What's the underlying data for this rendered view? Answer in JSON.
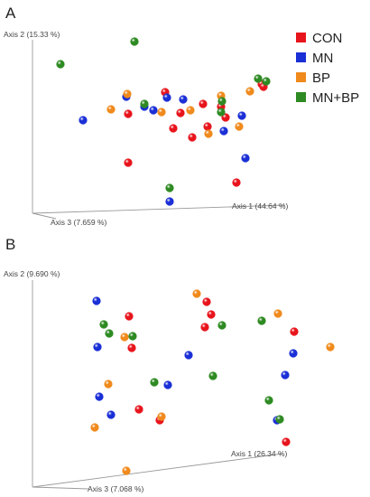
{
  "chart_data": [
    {
      "type": "scatter",
      "panel": "A",
      "axes": [
        {
          "label": "Axis 1 (44.64 %)"
        },
        {
          "label": "Axis 2 (15.33 %)"
        },
        {
          "label": "Axis 3 (7.659 %)"
        }
      ],
      "legend": {
        "placement": "top-right"
      },
      "series": [
        {
          "name": "CON",
          "color": "#e8141c",
          "points": [
            [
              183,
              102
            ],
            [
              225,
              115
            ],
            [
              142,
              126
            ],
            [
              192,
              142
            ],
            [
              213,
              152
            ],
            [
              250,
              130
            ],
            [
              290,
              93
            ],
            [
              292,
              96
            ],
            [
              142,
              180
            ],
            [
              262,
              202
            ],
            [
              245,
              118
            ],
            [
              200,
              125
            ],
            [
              230,
              140
            ]
          ]
        },
        {
          "name": "MN",
          "color": "#1a2fd6",
          "points": [
            [
              92,
              133
            ],
            [
              140,
              107
            ],
            [
              185,
              108
            ],
            [
              203,
              110
            ],
            [
              268,
              128
            ],
            [
              248,
              145
            ],
            [
              272,
              175
            ],
            [
              188,
              223
            ],
            [
              170,
              122
            ],
            [
              160,
              118
            ]
          ]
        },
        {
          "name": "BP",
          "color": "#f08a1c",
          "points": [
            [
              141,
              104
            ],
            [
              123,
              121
            ],
            [
              211,
              122
            ],
            [
              245,
              106
            ],
            [
              277,
              101
            ],
            [
              265,
              140
            ],
            [
              231,
              148
            ],
            [
              179,
              124
            ]
          ]
        },
        {
          "name": "MN+BP",
          "color": "#2e8a22",
          "points": [
            [
              149,
              46
            ],
            [
              67,
              71
            ],
            [
              160,
              115
            ],
            [
              246,
              112
            ],
            [
              286,
              87
            ],
            [
              295,
              90
            ],
            [
              245,
              124
            ],
            [
              188,
              208
            ]
          ]
        }
      ]
    },
    {
      "type": "scatter",
      "panel": "B",
      "axes": [
        {
          "label": "Axis 1 (26.34 %)"
        },
        {
          "label": "Axis 2 (9.690 %)"
        },
        {
          "label": "Axis 3 (7.068 %)"
        }
      ],
      "series": [
        {
          "name": "CON",
          "color": "#e8141c",
          "points": [
            [
              229,
              334
            ],
            [
              234,
              348
            ],
            [
              227,
              362
            ],
            [
              143,
              350
            ],
            [
              146,
              385
            ],
            [
              154,
              453
            ],
            [
              177,
              465
            ],
            [
              326,
              367
            ],
            [
              317,
              489
            ]
          ]
        },
        {
          "name": "MN",
          "color": "#1a2fd6",
          "points": [
            [
              107,
              333
            ],
            [
              108,
              384
            ],
            [
              209,
              393
            ],
            [
              186,
              426
            ],
            [
              110,
              439
            ],
            [
              123,
              459
            ],
            [
              325,
              391
            ],
            [
              316,
              415
            ],
            [
              307,
              465
            ]
          ]
        },
        {
          "name": "BP",
          "color": "#f08a1c",
          "points": [
            [
              218,
              325
            ],
            [
              308,
              347
            ],
            [
              366,
              384
            ],
            [
              138,
              373
            ],
            [
              120,
              425
            ],
            [
              179,
              461
            ],
            [
              105,
              473
            ],
            [
              140,
              521
            ]
          ]
        },
        {
          "name": "MN+BP",
          "color": "#2e8a22",
          "points": [
            [
              115,
              359
            ],
            [
              121,
              369
            ],
            [
              147,
              372
            ],
            [
              246,
              360
            ],
            [
              290,
              355
            ],
            [
              171,
              423
            ],
            [
              236,
              416
            ],
            [
              298,
              443
            ],
            [
              310,
              464
            ]
          ]
        }
      ]
    }
  ],
  "panels": {
    "a": {
      "letter": "A",
      "axis1": "Axis 1 (44.64 %)",
      "axis2": "Axis 2 (15.33 %)",
      "axis3": "Axis 3 (7.659 %)"
    },
    "b": {
      "letter": "B",
      "axis1": "Axis 1 (26.34 %)",
      "axis2": "Axis 2 (9.690 %)",
      "axis3": "Axis 3 (7.068 %)"
    }
  },
  "legend": [
    {
      "label": "CON",
      "color": "#e8141c"
    },
    {
      "label": "MN",
      "color": "#1a2fd6"
    },
    {
      "label": "BP",
      "color": "#f08a1c"
    },
    {
      "label": "MN+BP",
      "color": "#2e8a22"
    }
  ]
}
